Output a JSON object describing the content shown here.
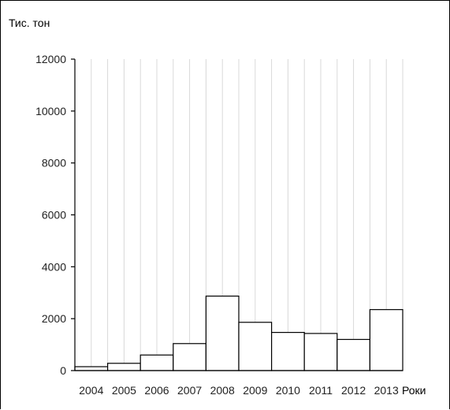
{
  "chart_data": {
    "type": "bar",
    "title": "",
    "ylabel": "Тис. тон",
    "xlabel": "Роки",
    "categories": [
      "2004",
      "2005",
      "2006",
      "2007",
      "2008",
      "2009",
      "2010",
      "2011",
      "2012",
      "2013"
    ],
    "values": [
      150,
      280,
      600,
      1040,
      2870,
      1860,
      1470,
      1430,
      1200,
      2350
    ],
    "ylim": [
      0,
      12000
    ],
    "yticks": [
      0,
      2000,
      4000,
      6000,
      8000,
      10000,
      12000
    ],
    "grid": "vertical",
    "legend": "none",
    "bar_fill": "#ffffff",
    "bar_stroke": "#000000"
  }
}
